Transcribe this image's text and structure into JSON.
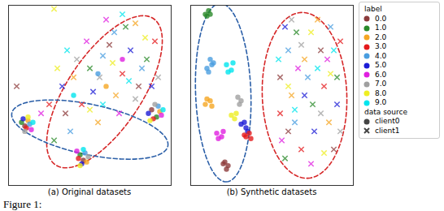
{
  "chart_data": [
    {
      "type": "scatter",
      "title": "(a) Original datasets",
      "xlim": [
        0,
        100
      ],
      "ylim": [
        0,
        100
      ],
      "tick_labels": false,
      "groups": [
        {
          "label": "0.0",
          "source": "client0",
          "x": [
            10,
            46,
            88
          ],
          "y": [
            33,
            14,
            42
          ]
        },
        {
          "label": "1.0",
          "source": "client0",
          "x": [
            8,
            44,
            91
          ],
          "y": [
            35,
            17,
            38
          ]
        },
        {
          "label": "2.0",
          "source": "client0",
          "x": [
            12,
            48,
            93,
            60
          ],
          "y": [
            36,
            13,
            41,
            55
          ]
        },
        {
          "label": "3.0",
          "source": "client0",
          "x": [
            11,
            43,
            89
          ],
          "y": [
            32,
            15,
            37
          ]
        },
        {
          "label": "4.0",
          "source": "client0",
          "x": [
            13,
            47,
            92,
            55
          ],
          "y": [
            34,
            18,
            44,
            62
          ]
        },
        {
          "label": "5.0",
          "source": "client0",
          "x": [
            9,
            45,
            86
          ],
          "y": [
            37,
            12,
            40
          ]
        },
        {
          "label": "6.0",
          "source": "client0",
          "x": [
            14,
            42,
            94,
            70
          ],
          "y": [
            31,
            19,
            39,
            70
          ]
        },
        {
          "label": "7.0",
          "source": "client0",
          "x": [
            10,
            49,
            90
          ],
          "y": [
            30,
            16,
            45
          ]
        },
        {
          "label": "8.0",
          "source": "client0",
          "x": [
            12,
            44,
            87
          ],
          "y": [
            38,
            11,
            36
          ]
        },
        {
          "label": "9.0",
          "source": "client0",
          "x": [
            15,
            46,
            95,
            40
          ],
          "y": [
            35,
            20,
            42,
            50
          ]
        },
        {
          "label": "0.0",
          "source": "client1",
          "x": [
            35,
            62,
            80,
            5
          ],
          "y": [
            40,
            78,
            55,
            55
          ]
        },
        {
          "label": "1.0",
          "source": "client1",
          "x": [
            50,
            72,
            28,
            85
          ],
          "y": [
            65,
            88,
            25,
            70
          ]
        },
        {
          "label": "2.0",
          "source": "client1",
          "x": [
            40,
            66,
            78,
            55
          ],
          "y": [
            60,
            50,
            90,
            35
          ]
        },
        {
          "label": "3.0",
          "source": "client1",
          "x": [
            45,
            70,
            90,
            25
          ],
          "y": [
            45,
            62,
            80,
            45
          ]
        },
        {
          "label": "4.0",
          "source": "client1",
          "x": [
            58,
            38,
            82,
            65
          ],
          "y": [
            72,
            30,
            65,
            85
          ]
        },
        {
          "label": "5.0",
          "source": "client1",
          "x": [
            52,
            75,
            33,
            88
          ],
          "y": [
            52,
            75,
            55,
            55
          ]
        },
        {
          "label": "6.0",
          "source": "client1",
          "x": [
            48,
            68,
            60,
            20
          ],
          "y": [
            80,
            40,
            92,
            40
          ]
        },
        {
          "label": "7.0",
          "source": "client1",
          "x": [
            42,
            78,
            56,
            92
          ],
          "y": [
            70,
            48,
            60,
            60
          ]
        },
        {
          "label": "8.0",
          "source": "client1",
          "x": [
            30,
            64,
            84,
            50,
            28
          ],
          "y": [
            65,
            68,
            82,
            42,
            98
          ]
        },
        {
          "label": "9.0",
          "source": "client1",
          "x": [
            36,
            74,
            58,
            70
          ],
          "y": [
            75,
            58,
            45,
            95
          ]
        }
      ],
      "ellipses": [
        {
          "color": "#d62728",
          "line_style": "dashed",
          "from": [
            28,
            12
          ],
          "to": [
            90,
            92
          ],
          "half_width": 22
        },
        {
          "color": "#2b5fa8",
          "line_style": "dashed",
          "from": [
            2,
            40
          ],
          "to": [
            98,
            22
          ],
          "half_width": 14
        }
      ]
    },
    {
      "type": "scatter",
      "title": "(b) Synthetic datasets",
      "xlim": [
        0,
        100
      ],
      "ylim": [
        0,
        100
      ],
      "tick_labels": false,
      "groups": [
        {
          "label": "1.0",
          "source": "client0",
          "x": [
            9,
            11,
            10,
            12
          ],
          "y": [
            95,
            97,
            94,
            95
          ]
        },
        {
          "label": "4.0",
          "source": "client0",
          "x": [
            10,
            13,
            11,
            14,
            12
          ],
          "y": [
            65,
            67,
            63,
            68,
            70
          ]
        },
        {
          "label": "9.0",
          "source": "client0",
          "x": [
            22,
            25,
            26,
            23
          ],
          "y": [
            67,
            64,
            68,
            63
          ]
        },
        {
          "label": "2.0",
          "source": "client0",
          "x": [
            9,
            12,
            10,
            13
          ],
          "y": [
            45,
            47,
            48,
            44
          ]
        },
        {
          "label": "7.0",
          "source": "client0",
          "x": [
            29,
            31,
            30
          ],
          "y": [
            49,
            47,
            45
          ]
        },
        {
          "label": "8.0",
          "source": "client0",
          "x": [
            25,
            27,
            28
          ],
          "y": [
            39,
            37,
            40
          ]
        },
        {
          "label": "6.0",
          "source": "client0",
          "x": [
            16,
            19,
            17,
            20
          ],
          "y": [
            29,
            27,
            26,
            30
          ]
        },
        {
          "label": "5.0",
          "source": "client0",
          "x": [
            31,
            34,
            33,
            35
          ],
          "y": [
            34,
            32,
            35,
            30
          ]
        },
        {
          "label": "3.0",
          "source": "client0",
          "x": [
            34,
            36,
            37,
            33
          ],
          "y": [
            27,
            29,
            26,
            28
          ]
        },
        {
          "label": "0.0",
          "source": "client0",
          "x": [
            21,
            23,
            22,
            20
          ],
          "y": [
            13,
            11,
            9,
            12
          ]
        },
        {
          "label": "0.0",
          "source": "client1",
          "x": [
            60,
            80,
            55,
            88
          ],
          "y": [
            30,
            75,
            60,
            20
          ]
        },
        {
          "label": "1.0",
          "source": "client1",
          "x": [
            65,
            75,
            90,
            58
          ],
          "y": [
            85,
            45,
            60,
            15
          ]
        },
        {
          "label": "2.0",
          "source": "client1",
          "x": [
            70,
            62,
            85,
            78
          ],
          "y": [
            70,
            50,
            35,
            92
          ]
        },
        {
          "label": "3.0",
          "source": "client1",
          "x": [
            55,
            82,
            68,
            92
          ],
          "y": [
            40,
            55,
            20,
            80
          ]
        },
        {
          "label": "4.0",
          "source": "client1",
          "x": [
            72,
            60,
            86,
            64
          ],
          "y": [
            60,
            75,
            88,
            35
          ]
        },
        {
          "label": "5.0",
          "source": "client1",
          "x": [
            76,
            58,
            90,
            70
          ],
          "y": [
            30,
            88,
            45,
            50
          ]
        },
        {
          "label": "6.0",
          "source": "client1",
          "x": [
            66,
            84,
            74,
            56
          ],
          "y": [
            65,
            70,
            12,
            25
          ]
        },
        {
          "label": "7.0",
          "source": "client1",
          "x": [
            80,
            62,
            92,
            68
          ],
          "y": [
            40,
            92,
            30,
            78
          ]
        },
        {
          "label": "8.0",
          "source": "client1",
          "x": [
            74,
            86,
            60,
            82
          ],
          "y": [
            85,
            62,
            55,
            18
          ]
        },
        {
          "label": "9.0",
          "source": "client1",
          "x": [
            64,
            78,
            88,
            54
          ],
          "y": [
            42,
            65,
            75,
            70
          ]
        }
      ],
      "ellipses": [
        {
          "color": "#2b5fa8",
          "line_style": "dashed",
          "from": [
            18,
            101
          ],
          "to": [
            22,
            2
          ],
          "half_width": 17
        },
        {
          "color": "#d62728",
          "line_style": "dashed",
          "from": [
            68,
            96
          ],
          "to": [
            72,
            4
          ],
          "half_width": 26
        }
      ]
    }
  ],
  "color_legend": {
    "title": "label",
    "series": [
      {
        "name": "0.0",
        "color": "#8c3b3b"
      },
      {
        "name": "1.0",
        "color": "#2a8a2a"
      },
      {
        "name": "2.0",
        "color": "#f5a623"
      },
      {
        "name": "3.0",
        "color": "#e41a1c"
      },
      {
        "name": "4.0",
        "color": "#4a9ee0"
      },
      {
        "name": "5.0",
        "color": "#1c1cd6"
      },
      {
        "name": "6.0",
        "color": "#e020e0"
      },
      {
        "name": "7.0",
        "color": "#a0a0a0"
      },
      {
        "name": "8.0",
        "color": "#eeee22"
      },
      {
        "name": "9.0",
        "color": "#00e5ee"
      }
    ]
  },
  "marker_legend": {
    "title": "data source",
    "series": [
      {
        "name": "client0",
        "marker": "circle"
      },
      {
        "name": "client1",
        "marker": "times"
      }
    ]
  },
  "caption": "Figure 1:"
}
